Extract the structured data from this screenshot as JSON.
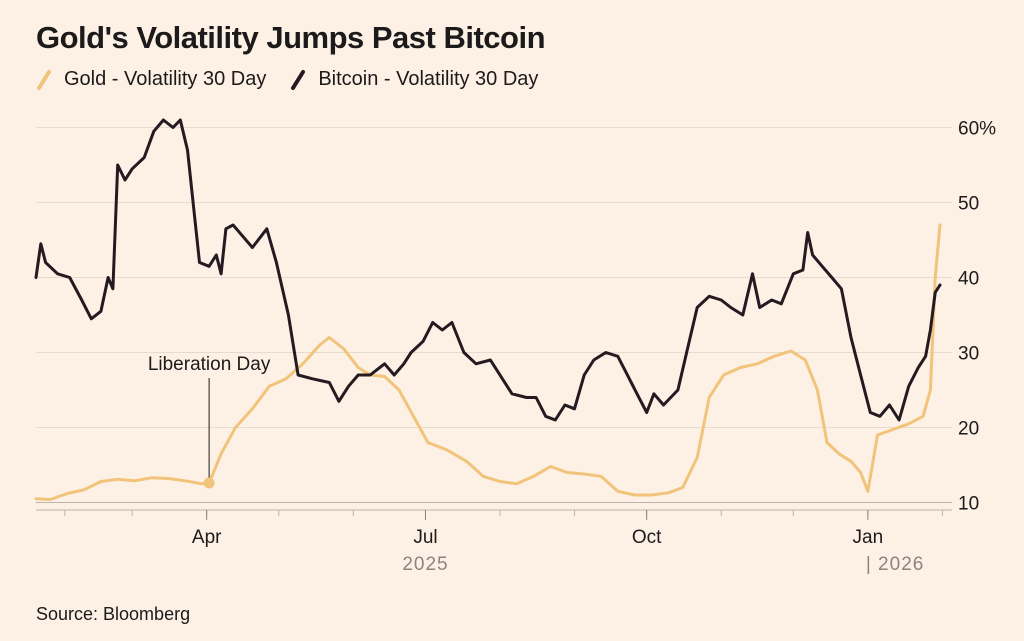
{
  "chart_data": {
    "type": "line",
    "title": "Gold's Volatility Jumps Past Bitcoin",
    "source": "Source: Bloomberg",
    "y_ticks": [
      {
        "value": 60,
        "label": "60%"
      },
      {
        "value": 50,
        "label": "50"
      },
      {
        "value": 40,
        "label": "40"
      },
      {
        "value": 30,
        "label": "30"
      },
      {
        "value": 20,
        "label": "20"
      },
      {
        "value": 10,
        "label": "10"
      }
    ],
    "ylim": [
      9,
      61
    ],
    "xlim": [
      "2025-01-20",
      "2026-02-05"
    ],
    "x_ticks": [
      {
        "date": "2025-04-01",
        "label": "Apr"
      },
      {
        "date": "2025-07-01",
        "label": "Jul"
      },
      {
        "date": "2025-10-01",
        "label": "Oct"
      },
      {
        "date": "2026-01-01",
        "label": "Jan"
      }
    ],
    "year_labels": [
      {
        "date": "2025-07-01",
        "label": "2025"
      },
      {
        "date": "2026-01-01",
        "label": "| 2026"
      }
    ],
    "annotation": {
      "label": "Liberation Day",
      "date": "2025-04-02",
      "series": "Gold - Volatility 30 Day",
      "value": 12.6
    },
    "grid": true,
    "y_axis_position": "right",
    "series": [
      {
        "name": "Gold - Volatility 30 Day",
        "color": "#f2c37a",
        "points": [
          [
            "2025-01-20",
            10.5
          ],
          [
            "2025-01-26",
            10.4
          ],
          [
            "2025-02-02",
            11.2
          ],
          [
            "2025-02-09",
            11.7
          ],
          [
            "2025-02-16",
            12.8
          ],
          [
            "2025-02-23",
            13.1
          ],
          [
            "2025-03-02",
            12.9
          ],
          [
            "2025-03-09",
            13.3
          ],
          [
            "2025-03-16",
            13.2
          ],
          [
            "2025-03-23",
            12.9
          ],
          [
            "2025-03-30",
            12.5
          ],
          [
            "2025-04-02",
            12.6
          ],
          [
            "2025-04-07",
            16.5
          ],
          [
            "2025-04-13",
            20.0
          ],
          [
            "2025-04-20",
            22.5
          ],
          [
            "2025-04-27",
            25.5
          ],
          [
            "2025-05-04",
            26.5
          ],
          [
            "2025-05-11",
            28.5
          ],
          [
            "2025-05-18",
            31.0
          ],
          [
            "2025-05-22",
            32.0
          ],
          [
            "2025-05-28",
            30.5
          ],
          [
            "2025-06-03",
            28.0
          ],
          [
            "2025-06-08",
            27.0
          ],
          [
            "2025-06-14",
            26.8
          ],
          [
            "2025-06-20",
            25.0
          ],
          [
            "2025-06-26",
            21.5
          ],
          [
            "2025-07-02",
            18.0
          ],
          [
            "2025-07-10",
            17.0
          ],
          [
            "2025-07-18",
            15.5
          ],
          [
            "2025-07-25",
            13.5
          ],
          [
            "2025-08-01",
            12.8
          ],
          [
            "2025-08-08",
            12.5
          ],
          [
            "2025-08-15",
            13.5
          ],
          [
            "2025-08-22",
            14.8
          ],
          [
            "2025-08-29",
            14.0
          ],
          [
            "2025-09-05",
            13.8
          ],
          [
            "2025-09-12",
            13.5
          ],
          [
            "2025-09-19",
            11.5
          ],
          [
            "2025-09-26",
            11.0
          ],
          [
            "2025-10-03",
            11.0
          ],
          [
            "2025-10-10",
            11.3
          ],
          [
            "2025-10-16",
            12.0
          ],
          [
            "2025-10-22",
            16.0
          ],
          [
            "2025-10-27",
            24.0
          ],
          [
            "2025-11-02",
            27.0
          ],
          [
            "2025-11-09",
            28.0
          ],
          [
            "2025-11-16",
            28.5
          ],
          [
            "2025-11-23",
            29.5
          ],
          [
            "2025-11-30",
            30.2
          ],
          [
            "2025-12-06",
            29.0
          ],
          [
            "2025-12-11",
            25.0
          ],
          [
            "2025-12-15",
            18.0
          ],
          [
            "2025-12-20",
            16.5
          ],
          [
            "2025-12-25",
            15.5
          ],
          [
            "2025-12-29",
            14.0
          ],
          [
            "2026-01-01",
            11.5
          ],
          [
            "2026-01-05",
            19.0
          ],
          [
            "2026-01-12",
            19.8
          ],
          [
            "2026-01-18",
            20.5
          ],
          [
            "2026-01-24",
            21.5
          ],
          [
            "2026-01-27",
            25.0
          ],
          [
            "2026-01-29",
            40.0
          ],
          [
            "2026-01-31",
            47.0
          ]
        ]
      },
      {
        "name": "Bitcoin - Volatility 30 Day",
        "color": "#231a22",
        "points": [
          [
            "2025-01-20",
            40.0
          ],
          [
            "2025-01-22",
            44.5
          ],
          [
            "2025-01-24",
            42.0
          ],
          [
            "2025-01-29",
            40.5
          ],
          [
            "2025-02-03",
            40.0
          ],
          [
            "2025-02-08",
            37.0
          ],
          [
            "2025-02-12",
            34.5
          ],
          [
            "2025-02-16",
            35.5
          ],
          [
            "2025-02-19",
            40.0
          ],
          [
            "2025-02-21",
            38.5
          ],
          [
            "2025-02-23",
            55.0
          ],
          [
            "2025-02-26",
            53.0
          ],
          [
            "2025-03-01",
            54.5
          ],
          [
            "2025-03-06",
            56.0
          ],
          [
            "2025-03-10",
            59.5
          ],
          [
            "2025-03-14",
            61.0
          ],
          [
            "2025-03-18",
            60.0
          ],
          [
            "2025-03-21",
            61.0
          ],
          [
            "2025-03-24",
            57.0
          ],
          [
            "2025-03-27",
            48.0
          ],
          [
            "2025-03-29",
            42.0
          ],
          [
            "2025-04-02",
            41.5
          ],
          [
            "2025-04-05",
            43.0
          ],
          [
            "2025-04-07",
            40.5
          ],
          [
            "2025-04-09",
            46.5
          ],
          [
            "2025-04-12",
            47.0
          ],
          [
            "2025-04-16",
            45.5
          ],
          [
            "2025-04-20",
            44.0
          ],
          [
            "2025-04-26",
            46.5
          ],
          [
            "2025-04-30",
            42.0
          ],
          [
            "2025-05-05",
            35.0
          ],
          [
            "2025-05-09",
            27.0
          ],
          [
            "2025-05-15",
            26.5
          ],
          [
            "2025-05-22",
            26.0
          ],
          [
            "2025-05-26",
            23.5
          ],
          [
            "2025-05-30",
            25.5
          ],
          [
            "2025-06-03",
            27.0
          ],
          [
            "2025-06-08",
            27.0
          ],
          [
            "2025-06-14",
            28.5
          ],
          [
            "2025-06-18",
            27.0
          ],
          [
            "2025-06-22",
            28.5
          ],
          [
            "2025-06-25",
            30.0
          ],
          [
            "2025-06-30",
            31.5
          ],
          [
            "2025-07-04",
            34.0
          ],
          [
            "2025-07-08",
            33.0
          ],
          [
            "2025-07-12",
            34.0
          ],
          [
            "2025-07-17",
            30.0
          ],
          [
            "2025-07-22",
            28.5
          ],
          [
            "2025-07-28",
            29.0
          ],
          [
            "2025-08-02",
            26.5
          ],
          [
            "2025-08-06",
            24.5
          ],
          [
            "2025-08-12",
            24.0
          ],
          [
            "2025-08-16",
            24.0
          ],
          [
            "2025-08-20",
            21.5
          ],
          [
            "2025-08-24",
            21.0
          ],
          [
            "2025-08-28",
            23.0
          ],
          [
            "2025-09-01",
            22.5
          ],
          [
            "2025-09-05",
            27.0
          ],
          [
            "2025-09-09",
            29.0
          ],
          [
            "2025-09-14",
            30.0
          ],
          [
            "2025-09-19",
            29.5
          ],
          [
            "2025-09-23",
            27.0
          ],
          [
            "2025-09-27",
            24.5
          ],
          [
            "2025-10-01",
            22.0
          ],
          [
            "2025-10-04",
            24.5
          ],
          [
            "2025-10-08",
            23.0
          ],
          [
            "2025-10-14",
            25.0
          ],
          [
            "2025-10-18",
            30.5
          ],
          [
            "2025-10-22",
            36.0
          ],
          [
            "2025-10-27",
            37.5
          ],
          [
            "2025-11-01",
            37.0
          ],
          [
            "2025-11-05",
            36.0
          ],
          [
            "2025-11-10",
            35.0
          ],
          [
            "2025-11-14",
            40.5
          ],
          [
            "2025-11-17",
            36.0
          ],
          [
            "2025-11-22",
            37.0
          ],
          [
            "2025-11-26",
            36.5
          ],
          [
            "2025-12-01",
            40.5
          ],
          [
            "2025-12-05",
            41.0
          ],
          [
            "2025-12-07",
            46.0
          ],
          [
            "2025-12-09",
            43.0
          ],
          [
            "2025-12-13",
            41.5
          ],
          [
            "2025-12-17",
            40.0
          ],
          [
            "2025-12-21",
            38.5
          ],
          [
            "2025-12-25",
            32.0
          ],
          [
            "2025-12-29",
            27.0
          ],
          [
            "2026-01-02",
            22.0
          ],
          [
            "2026-01-06",
            21.5
          ],
          [
            "2026-01-10",
            23.0
          ],
          [
            "2026-01-14",
            21.0
          ],
          [
            "2026-01-18",
            25.5
          ],
          [
            "2026-01-22",
            28.0
          ],
          [
            "2026-01-25",
            29.5
          ],
          [
            "2026-01-27",
            33.0
          ],
          [
            "2026-01-29",
            38.0
          ],
          [
            "2026-01-31",
            39.0
          ]
        ]
      }
    ]
  }
}
